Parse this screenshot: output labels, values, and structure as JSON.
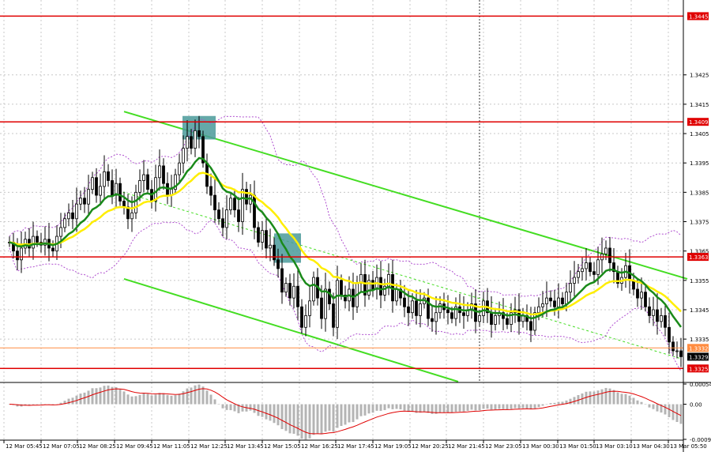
{
  "chart_data": [
    {
      "type": "candlestick",
      "title": "",
      "ylim": [
        1.33205,
        1.34505
      ],
      "y_ticks": [
        1.3425,
        1.3415,
        1.3405,
        1.3395,
        1.3385,
        1.3375,
        1.3365,
        1.3355,
        1.3345,
        1.3335
      ],
      "y_tick_labels": [
        "1.3425",
        "1.3415",
        "1.3405",
        "1.3395",
        "1.3385",
        "1.3375",
        "1.3365",
        "1.3355",
        "1.3345",
        "1.3335"
      ],
      "x_tick_labels": [
        "12 Mar 05:45",
        "12 Mar 07:05",
        "12 Mar 08:25",
        "12 Mar 09:45",
        "12 Mar 11:05",
        "12 Mar 12:25",
        "12 Mar 13:45",
        "12 Mar 15:05",
        "12 Mar 16:25",
        "12 Mar 17:45",
        "12 Mar 19:05",
        "12 Mar 20:25",
        "12 Mar 21:45",
        "12 Mar 23:05",
        "13 Mar 00:30",
        "13 Mar 01:50",
        "13 Mar 03:10",
        "13 Mar 04:30",
        "13 Mar 05:50"
      ],
      "levels": [
        {
          "value": 1.3445,
          "label": "1.3445",
          "color": "#e00000"
        },
        {
          "value": 1.3409,
          "label": "1.3409",
          "color": "#e00000"
        },
        {
          "value": 1.3363,
          "label": "1.3363",
          "color": "#e00000"
        },
        {
          "value": 1.3325,
          "label": "1.3325",
          "color": "#e00000"
        }
      ],
      "current_price": {
        "value": 1.3329,
        "label": "1.3329"
      },
      "prev_close": {
        "value": 1.3332,
        "label": "1.3332",
        "color": "#ff8c40"
      },
      "ma_colors": {
        "fast": "#1a8a1a",
        "slow": "#ffee00"
      },
      "channel_color": "#44dd22",
      "signal_boxes": [
        {
          "time": "12 Mar 12:25",
          "price_low": 1.3403,
          "price_high": 1.3411,
          "color": "#4a9a9a"
        },
        {
          "time": "12 Mar 16:25",
          "price_low": 1.3361,
          "price_high": 1.3371,
          "color": "#4a9a9a"
        }
      ],
      "close_series": [
        1.3368,
        1.3365,
        1.3362,
        1.3366,
        1.3369,
        1.3366,
        1.337,
        1.3368,
        1.3367,
        1.3369,
        1.3366,
        1.3365,
        1.337,
        1.3373,
        1.3376,
        1.3378,
        1.3376,
        1.3381,
        1.3383,
        1.3381,
        1.3386,
        1.339,
        1.3384,
        1.3387,
        1.3392,
        1.3389,
        1.3384,
        1.3388,
        1.3382,
        1.338,
        1.3376,
        1.3378,
        1.3385,
        1.3389,
        1.3391,
        1.3386,
        1.3382,
        1.339,
        1.3394,
        1.3388,
        1.3384,
        1.3386,
        1.3391,
        1.3395,
        1.34,
        1.3404,
        1.34,
        1.3406,
        1.3404,
        1.3395,
        1.3387,
        1.3384,
        1.3379,
        1.3376,
        1.3373,
        1.3379,
        1.3383,
        1.3379,
        1.3375,
        1.3386,
        1.3381,
        1.3384,
        1.3373,
        1.3368,
        1.3372,
        1.3366,
        1.3367,
        1.3362,
        1.3359,
        1.3351,
        1.3354,
        1.3349,
        1.3353,
        1.3346,
        1.3339,
        1.3343,
        1.3348,
        1.3356,
        1.3349,
        1.3342,
        1.3352,
        1.3347,
        1.3339,
        1.3355,
        1.335,
        1.3348,
        1.3352,
        1.3346,
        1.3354,
        1.3357,
        1.335,
        1.3355,
        1.3352,
        1.3356,
        1.335,
        1.3353,
        1.3357,
        1.3348,
        1.3352,
        1.3349,
        1.3346,
        1.3344,
        1.3348,
        1.3343,
        1.3347,
        1.3349,
        1.3342,
        1.3341,
        1.3344,
        1.3347,
        1.3345,
        1.3344,
        1.3342,
        1.3346,
        1.3344,
        1.3343,
        1.3345,
        1.3347,
        1.3341,
        1.3343,
        1.3348,
        1.3344,
        1.334,
        1.3343,
        1.3344,
        1.3342,
        1.334,
        1.3344,
        1.3345,
        1.3341,
        1.3343,
        1.3341,
        1.3338,
        1.3344,
        1.3346,
        1.3347,
        1.3349,
        1.3348,
        1.3346,
        1.3349,
        1.3347,
        1.3351,
        1.3354,
        1.3356,
        1.3358,
        1.3359,
        1.3361,
        1.3358,
        1.3357,
        1.3362,
        1.3364,
        1.3366,
        1.3361,
        1.3358,
        1.3354,
        1.3356,
        1.336,
        1.3355,
        1.3352,
        1.3349,
        1.3351,
        1.3346,
        1.3343,
        1.3345,
        1.3341,
        1.3343,
        1.3339,
        1.3334,
        1.3331,
        1.3331,
        1.3329
      ],
      "oscillator": {
        "ylim": [
          -0.00094,
          0.00054
        ],
        "y_ticks": [
          0.00054,
          0.0,
          -0.00094
        ],
        "y_tick_labels": [
          "0.00054",
          "0.00",
          "-0.00094"
        ],
        "bar_color": "#b4b4b4",
        "signal_color": "#e00000"
      }
    }
  ]
}
